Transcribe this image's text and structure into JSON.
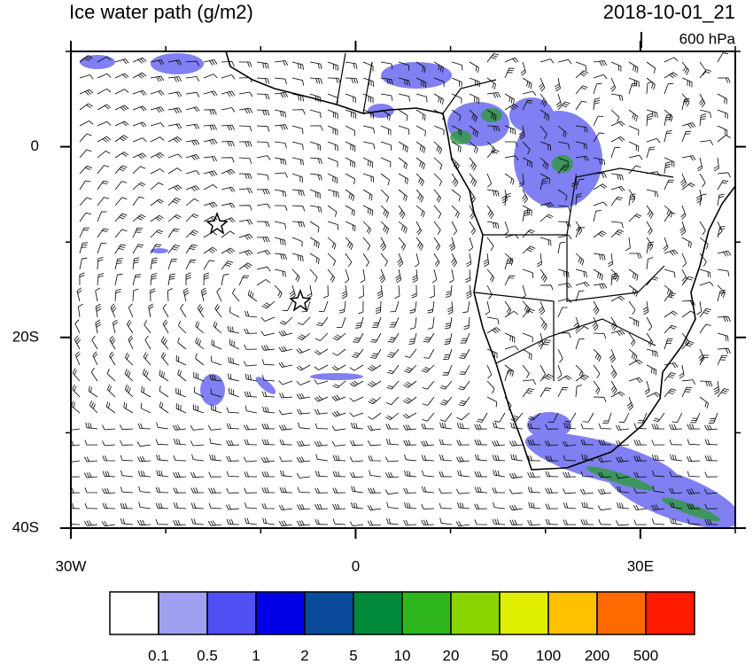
{
  "header": {
    "title": "Ice water path (g/m2)",
    "time": "2018-10-01_21",
    "level": "600 hPa"
  },
  "map": {
    "xlim": [
      -30,
      40
    ],
    "ylim": [
      -40,
      10
    ],
    "xticks": [
      {
        "value": -30,
        "label": "30W"
      },
      0,
      {
        "value": 30,
        "label": "30E"
      }
    ],
    "yticks": [
      0,
      {
        "value": -20,
        "label": "20S"
      },
      {
        "value": -40,
        "label": "40S"
      }
    ]
  },
  "colorbar": {
    "levels": [
      0.1,
      0.5,
      1,
      2,
      5,
      10,
      20,
      50,
      100,
      200,
      500
    ],
    "colors": [
      "#ffffff",
      "#a0a0f0",
      "#5050f5",
      "#0000e6",
      "#0a4a9b",
      "#00883b",
      "#2eb51e",
      "#8ad400",
      "#e0ee00",
      "#ffc000",
      "#ff6a00",
      "#ff1a00"
    ]
  }
}
